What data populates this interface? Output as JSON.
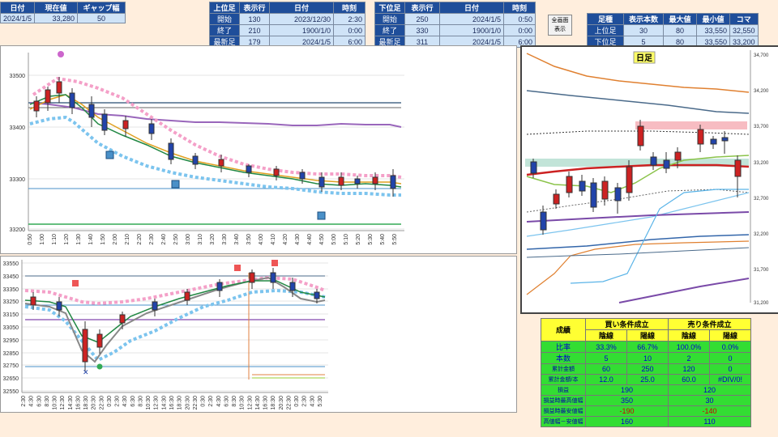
{
  "summary": {
    "headers": [
      "日付",
      "現在値",
      "ギャップ幅"
    ],
    "values": [
      "2024/1/5",
      "33,280",
      "50"
    ]
  },
  "upper": {
    "headers": [
      "上位足",
      "表示行",
      "日付",
      "時刻"
    ],
    "rows": [
      [
        "開始",
        "130",
        "2023/12/30",
        "2:30"
      ],
      [
        "終了",
        "210",
        "1900/1/0",
        "0:00"
      ],
      [
        "最新足",
        "179",
        "2024/1/5",
        "6:00"
      ]
    ]
  },
  "lower": {
    "headers": [
      "下位足",
      "表示行",
      "日付",
      "時刻"
    ],
    "rows": [
      [
        "開始",
        "250",
        "2024/1/5",
        "0:50"
      ],
      [
        "終了",
        "330",
        "1900/1/0",
        "0:00"
      ],
      [
        "最新足",
        "311",
        "2024/1/5",
        "6:00"
      ]
    ]
  },
  "fullscreen_button": [
    "全画面",
    "表示"
  ],
  "footstats": {
    "headers": [
      "足種",
      "表示本数",
      "最大値",
      "最小値",
      "コマ"
    ],
    "rows": [
      [
        "上位足",
        "30",
        "80",
        "33,550",
        "32,550"
      ],
      [
        "下位足",
        "5",
        "80",
        "33,550",
        "33,200"
      ]
    ]
  },
  "conditions": {
    "title": "成績",
    "buy": "買い条件成立",
    "sell": "売り条件成立",
    "sub": [
      "陰線",
      "陽線",
      "陰線",
      "陽線"
    ],
    "rows": [
      {
        "label": "比率",
        "v": [
          "33.3%",
          "66.7%",
          "100.0%",
          "0.0%"
        ]
      },
      {
        "label": "本数",
        "v": [
          "5",
          "10",
          "2",
          "0"
        ]
      },
      {
        "label": "累計金額",
        "v": [
          "60",
          "250",
          "120",
          "0"
        ]
      },
      {
        "label": "累計金額/本",
        "v": [
          "12.0",
          "25.0",
          "60.0",
          "#DIV/0!"
        ]
      }
    ],
    "rows2": [
      {
        "label": "損益",
        "v": [
          "190",
          "120"
        ]
      },
      {
        "label": "損益時最高値幅",
        "v": [
          "350",
          "30"
        ]
      },
      {
        "label": "損益時最安値幅",
        "v": [
          "-190",
          "-140"
        ]
      },
      {
        "label": "高値幅－安値幅",
        "v": [
          "160",
          "110"
        ]
      }
    ]
  },
  "chart_top": {
    "y_ticks": [
      "33500",
      "33400",
      "33300",
      "33200"
    ],
    "x_ticks": [
      "0:50",
      "1:00",
      "1:10",
      "1:20",
      "1:30",
      "1:40",
      "1:50",
      "2:00",
      "2:10",
      "2:20",
      "2:30",
      "2:40",
      "2:50",
      "3:00",
      "3:10",
      "3:20",
      "3:30",
      "3:40",
      "3:50",
      "4:00",
      "4:10",
      "4:20",
      "4:30",
      "4:40",
      "4:50",
      "5:00",
      "5:10",
      "5:20",
      "5:30",
      "5:40",
      "5:50"
    ]
  },
  "chart_bottom": {
    "y_ticks": [
      "33550",
      "33450",
      "33350",
      "33250",
      "33150",
      "33050",
      "32950",
      "32850",
      "32750",
      "32650",
      "32550"
    ],
    "x_ticks": [
      "2:30",
      "4:30",
      "6:30",
      "8:30",
      "10:30",
      "12:30",
      "14:30",
      "16:30",
      "18:30",
      "20:30",
      "22:30",
      "0:30",
      "2:30",
      "4:30",
      "6:30",
      "8:30",
      "10:30",
      "12:30",
      "14:30",
      "16:30",
      "18:30",
      "20:30",
      "22:30",
      "0:30",
      "2:30",
      "4:30",
      "6:30",
      "8:30",
      "10:30",
      "12:30",
      "14:30",
      "16:30",
      "18:30",
      "20:30",
      "22:30",
      "0:30",
      "2:30",
      "4:30",
      "5:30"
    ]
  },
  "chart_daily": {
    "title": "日足",
    "y_ticks": [
      "34,700",
      "34,200",
      "33,700",
      "33,200",
      "32,700",
      "32,200",
      "31,700",
      "31,200"
    ]
  }
}
